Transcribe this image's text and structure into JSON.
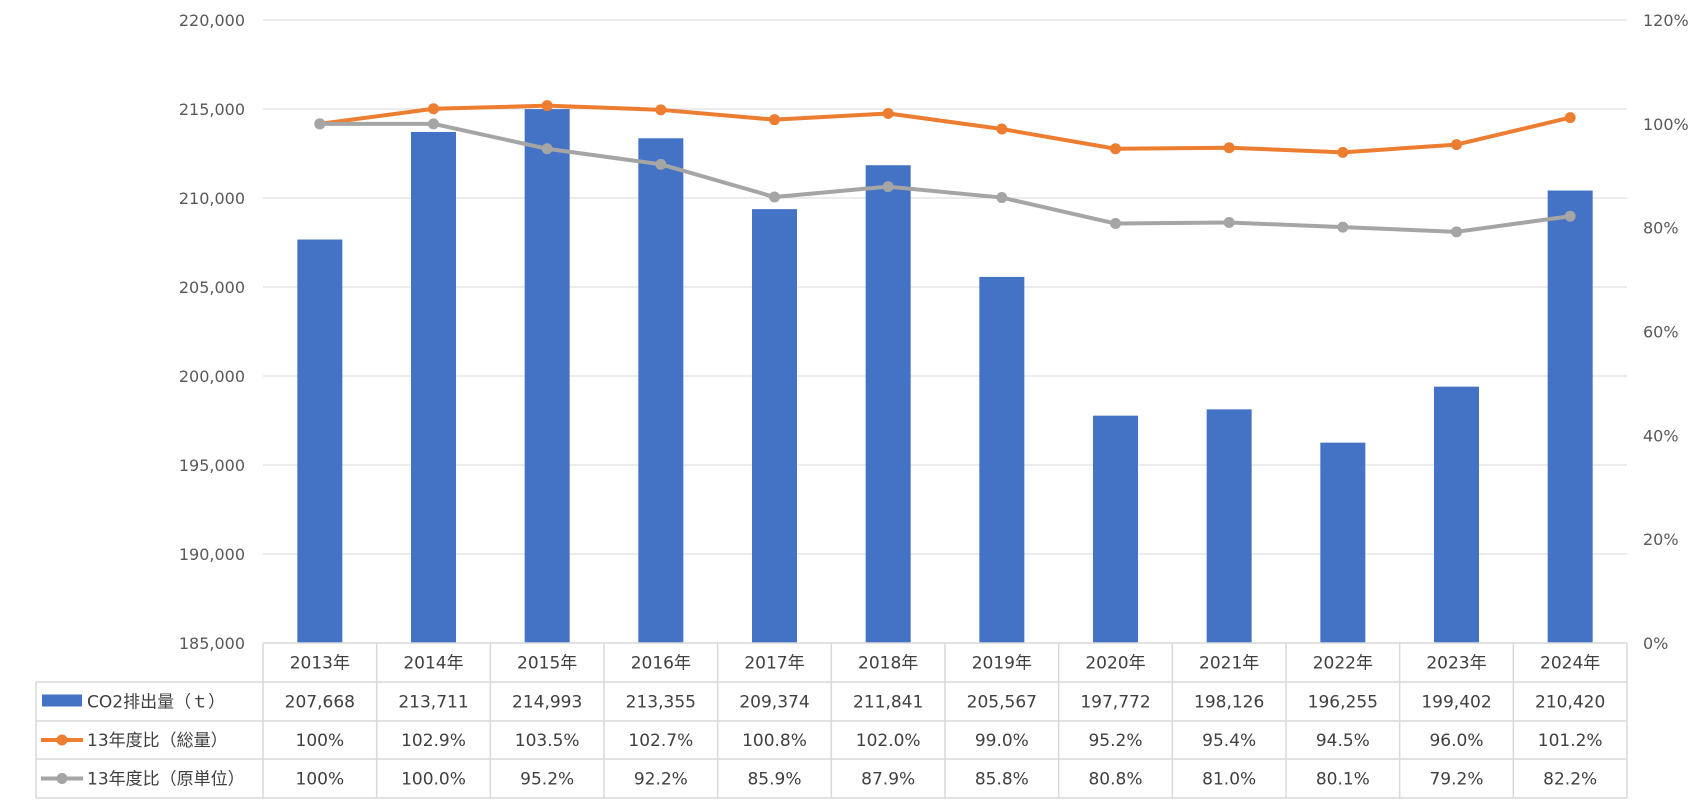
{
  "chart_data": {
    "type": "bar+line",
    "categories": [
      "2013年",
      "2014年",
      "2015年",
      "2016年",
      "2017年",
      "2018年",
      "2019年",
      "2020年",
      "2021年",
      "2022年",
      "2023年",
      "2024年"
    ],
    "left_axis": {
      "ylim": [
        185000,
        220000
      ],
      "ticks": [
        "185,000",
        "190,000",
        "195,000",
        "200,000",
        "205,000",
        "210,000",
        "215,000",
        "220,000"
      ]
    },
    "right_axis": {
      "ylim": [
        0,
        120
      ],
      "ticks": [
        "0%",
        "20%",
        "40%",
        "60%",
        "80%",
        "100%",
        "120%"
      ]
    },
    "series": [
      {
        "name": "CO2排出量（ｔ）",
        "type": "bar",
        "axis": "left",
        "color": "#4472C4",
        "values": [
          207668,
          213711,
          214993,
          213355,
          209374,
          211841,
          205567,
          197772,
          198126,
          196255,
          199402,
          210420
        ],
        "labels": [
          "207,668",
          "213,711",
          "214,993",
          "213,355",
          "209,374",
          "211,841",
          "205,567",
          "197,772",
          "198,126",
          "196,255",
          "199,402",
          "210,420"
        ]
      },
      {
        "name": "13年度比（総量）",
        "type": "line",
        "axis": "right",
        "color": "#ED7D31",
        "values": [
          100,
          102.9,
          103.5,
          102.7,
          100.8,
          102.0,
          99.0,
          95.2,
          95.4,
          94.5,
          96.0,
          101.2
        ],
        "labels": [
          "100%",
          "102.9%",
          "103.5%",
          "102.7%",
          "100.8%",
          "102.0%",
          "99.0%",
          "95.2%",
          "95.4%",
          "94.5%",
          "96.0%",
          "101.2%"
        ]
      },
      {
        "name": "13年度比（原単位）",
        "type": "line",
        "axis": "right",
        "color": "#A5A5A5",
        "values": [
          100,
          100.0,
          95.2,
          92.2,
          85.9,
          87.9,
          85.8,
          80.8,
          81.0,
          80.1,
          79.2,
          82.2
        ],
        "labels": [
          "100%",
          "100.0%",
          "95.2%",
          "92.2%",
          "85.9%",
          "87.9%",
          "85.8%",
          "80.8%",
          "81.0%",
          "80.1%",
          "79.2%",
          "82.2%"
        ]
      }
    ]
  }
}
